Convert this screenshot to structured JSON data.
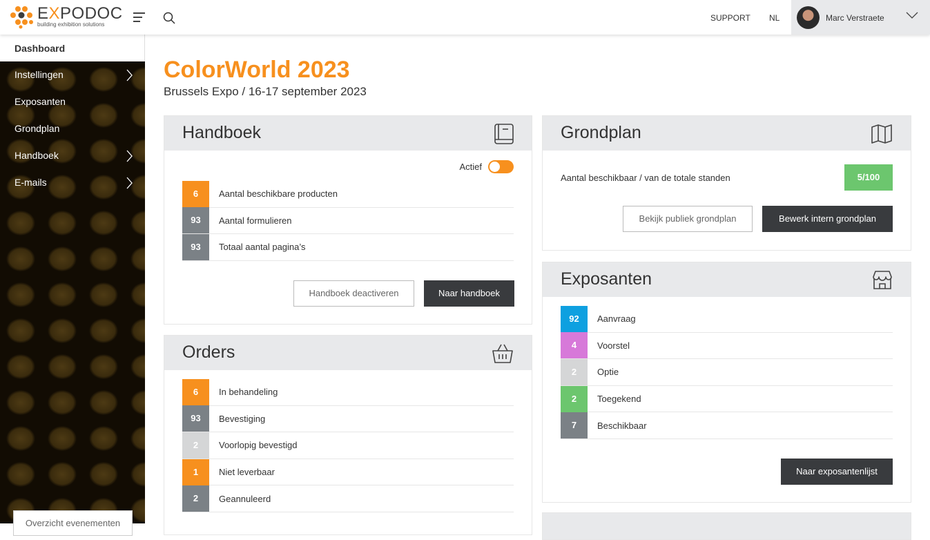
{
  "header": {
    "logo_name_pre": "E",
    "logo_name_x": "X",
    "logo_name_post": "PODOC",
    "logo_tagline": "building exhibition solutions",
    "support": "SUPPORT",
    "language": "NL",
    "user_name": "Marc Verstraete"
  },
  "sidebar": {
    "dashboard": "Dashboard",
    "items": [
      {
        "label": "Instellingen",
        "has_children": true
      },
      {
        "label": "Exposanten",
        "has_children": false
      },
      {
        "label": "Grondplan",
        "has_children": false
      },
      {
        "label": "Handboek",
        "has_children": true
      },
      {
        "label": "E-mails",
        "has_children": true
      }
    ],
    "overview_button": "Overzicht evenementen"
  },
  "event": {
    "title": "ColorWorld 2023",
    "subtitle": "Brussels Expo / 16-17 september 2023"
  },
  "colors": {
    "accent": "#f7901e",
    "gray": "#7b8186",
    "light": "#d5d6d7",
    "blue": "#0ea0e0",
    "purple": "#d779d9",
    "green": "#6cc66e",
    "dark": "#393b3e"
  },
  "handboek": {
    "title": "Handboek",
    "icon": "book-icon",
    "toggle_label": "Actief",
    "toggle_on": true,
    "rows": [
      {
        "count": "6",
        "label": "Aantal beschikbare producten",
        "color": "#f7901e"
      },
      {
        "count": "93",
        "label": "Aantal formulieren",
        "color": "#7b8186"
      },
      {
        "count": "93",
        "label": "Totaal aantal pagina’s",
        "color": "#7b8186"
      }
    ],
    "deactivate_button": "Handboek deactiveren",
    "open_button": "Naar handboek"
  },
  "orders": {
    "title": "Orders",
    "icon": "basket-icon",
    "rows": [
      {
        "count": "6",
        "label": "In behandeling",
        "color": "#f7901e"
      },
      {
        "count": "93",
        "label": "Bevestiging",
        "color": "#7b8186"
      },
      {
        "count": "2",
        "label": "Voorlopig bevestigd",
        "color": "#d5d6d7"
      },
      {
        "count": "1",
        "label": "Niet leverbaar",
        "color": "#f7901e"
      },
      {
        "count": "2",
        "label": "Geannuleerd",
        "color": "#7b8186"
      }
    ]
  },
  "grondplan": {
    "title": "Grondplan",
    "icon": "map-icon",
    "stat_label": "Aantal beschikbaar / van de totale standen",
    "stat_value": "5/100",
    "public_button": "Bekijk publiek grondplan",
    "edit_button": "Bewerk intern grondplan"
  },
  "exposanten": {
    "title": "Exposanten",
    "icon": "store-icon",
    "rows": [
      {
        "count": "92",
        "label": "Aanvraag",
        "color": "#0ea0e0"
      },
      {
        "count": "4",
        "label": "Voorstel",
        "color": "#d779d9"
      },
      {
        "count": "2",
        "label": "Optie",
        "color": "#d5d6d7"
      },
      {
        "count": "2",
        "label": "Toegekend",
        "color": "#6cc66e"
      },
      {
        "count": "7",
        "label": "Beschikbaar",
        "color": "#7b8186"
      }
    ],
    "list_button": "Naar exposantenlijst"
  }
}
